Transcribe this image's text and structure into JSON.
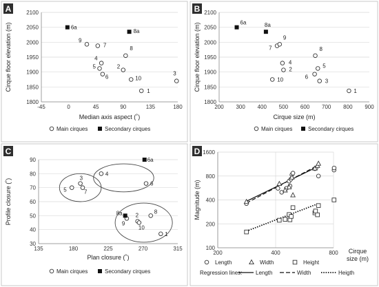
{
  "chart_data": [
    {
      "panel": "A",
      "type": "scatter",
      "xlabel": "Median axis aspect (˚)",
      "ylabel": "Cirque floor elevation (m)",
      "xlim": [
        -45,
        180
      ],
      "ylim": [
        1800,
        2100
      ],
      "xticks": [
        -45,
        0,
        45,
        90,
        135,
        180
      ],
      "yticks": [
        1800,
        1850,
        1900,
        1950,
        2000,
        2050,
        2100
      ],
      "grid": "horizontal",
      "series": [
        {
          "name": "Main cirques",
          "marker": "open-circle",
          "points": [
            {
              "label": "1",
              "x": 120,
              "y": 1837
            },
            {
              "label": "2",
              "x": 90,
              "y": 1907
            },
            {
              "label": "3",
              "x": 178,
              "y": 1870
            },
            {
              "label": "4",
              "x": 54,
              "y": 1930
            },
            {
              "label": "5",
              "x": 51,
              "y": 1912
            },
            {
              "label": "6",
              "x": 56,
              "y": 1893
            },
            {
              "label": "7",
              "x": 48,
              "y": 1988
            },
            {
              "label": "8",
              "x": 94,
              "y": 1955
            },
            {
              "label": "9",
              "x": 30,
              "y": 1993
            },
            {
              "label": "10",
              "x": 103,
              "y": 1875
            }
          ]
        },
        {
          "name": "Secondary cirques",
          "marker": "filled-square",
          "points": [
            {
              "label": "6a",
              "x": -2,
              "y": 2050
            },
            {
              "label": "8a",
              "x": 100,
              "y": 2035
            }
          ]
        }
      ],
      "legend": [
        {
          "label": "Main cirques",
          "marker": "open-circle"
        },
        {
          "label": "Secondary cirques",
          "marker": "filled-square"
        }
      ]
    },
    {
      "panel": "B",
      "type": "scatter",
      "xlabel": "Cirque size (m)",
      "ylabel": "Cirque floor elevation (m)",
      "xlim": [
        200,
        900
      ],
      "ylim": [
        1800,
        2100
      ],
      "xticks": [
        200,
        300,
        400,
        500,
        600,
        700,
        800,
        900
      ],
      "yticks": [
        1800,
        1850,
        1900,
        1950,
        2000,
        2050,
        2100
      ],
      "grid": "horizontal",
      "series": [
        {
          "name": "Main cirques",
          "marker": "open-circle",
          "points": [
            {
              "label": "1",
              "x": 805,
              "y": 1837
            },
            {
              "label": "2",
              "x": 500,
              "y": 1907
            },
            {
              "label": "3",
              "x": 668,
              "y": 1870
            },
            {
              "label": "4",
              "x": 495,
              "y": 1930
            },
            {
              "label": "5",
              "x": 660,
              "y": 1912
            },
            {
              "label": "6",
              "x": 645,
              "y": 1893
            },
            {
              "label": "7",
              "x": 470,
              "y": 1988
            },
            {
              "label": "8",
              "x": 648,
              "y": 1955
            },
            {
              "label": "9",
              "x": 482,
              "y": 1993
            },
            {
              "label": "10",
              "x": 448,
              "y": 1875
            }
          ]
        },
        {
          "name": "Secondary cirques",
          "marker": "filled-square",
          "points": [
            {
              "label": "6a",
              "x": 282,
              "y": 2050
            },
            {
              "label": "8a",
              "x": 418,
              "y": 2035
            }
          ]
        }
      ],
      "legend": [
        {
          "label": "Main cirques",
          "marker": "open-circle"
        },
        {
          "label": "Secondary cirques",
          "marker": "filled-square"
        }
      ]
    },
    {
      "panel": "C",
      "type": "scatter",
      "xlabel": "Plan closure (˚)",
      "ylabel": "Profile closure (˚)",
      "xlim": [
        135,
        315
      ],
      "ylim": [
        30,
        90
      ],
      "xticks": [
        135,
        180,
        225,
        270,
        315
      ],
      "yticks": [
        30,
        40,
        50,
        60,
        70,
        80,
        90
      ],
      "grid": "horizontal",
      "series": [
        {
          "name": "Main cirques",
          "marker": "open-circle",
          "points": [
            {
              "label": "1",
              "x": 293,
              "y": 37
            },
            {
              "label": "2",
              "x": 263,
              "y": 46
            },
            {
              "label": "3",
              "x": 189,
              "y": 73
            },
            {
              "label": "4",
              "x": 216,
              "y": 80
            },
            {
              "label": "5",
              "x": 178,
              "y": 70
            },
            {
              "label": "6",
              "x": 274,
              "y": 73
            },
            {
              "label": "7",
              "x": 192,
              "y": 70
            },
            {
              "label": "8",
              "x": 280,
              "y": 50
            },
            {
              "label": "9",
              "x": 249,
              "y": 48
            },
            {
              "label": "10",
              "x": 265,
              "y": 45
            }
          ]
        },
        {
          "name": "Secondary cirques",
          "marker": "filled-square",
          "points": [
            {
              "label": "6a",
              "x": 272,
              "y": 90
            },
            {
              "label": "8a",
              "x": 247,
              "y": 50
            }
          ]
        }
      ],
      "groups": [
        {
          "cx": 189,
          "cy": 70,
          "rx": 27,
          "ry": 10
        },
        {
          "cx": 245,
          "cy": 77,
          "rx": 39,
          "ry": 10
        },
        {
          "cx": 271,
          "cy": 45,
          "rx": 37,
          "ry": 14
        }
      ],
      "legend": [
        {
          "label": "Main cirques",
          "marker": "open-circle"
        },
        {
          "label": "Secondary cirques",
          "marker": "filled-square"
        }
      ]
    },
    {
      "panel": "D",
      "type": "scatter",
      "xlabel": "Cirque size (m)",
      "ylabel": "Magnitude (m)",
      "xscale": "log",
      "yscale": "log",
      "xlim": [
        200,
        800
      ],
      "ylim": [
        100,
        1600
      ],
      "xticks": [
        200,
        400,
        800
      ],
      "yticks": [
        100,
        200,
        400,
        800,
        1600
      ],
      "grid": "both",
      "series": [
        {
          "name": "Length",
          "marker": "open-circle",
          "points": [
            [
              282,
              360
            ],
            [
              411,
              560
            ],
            [
              430,
              500
            ],
            [
              455,
              560
            ],
            [
              470,
              690
            ],
            [
              475,
              600
            ],
            [
              480,
              730
            ],
            [
              486,
              830
            ],
            [
              492,
              870
            ],
            [
              640,
              990
            ],
            [
              648,
              1010
            ],
            [
              668,
              800
            ],
            [
              805,
              950
            ],
            [
              806,
              1010
            ]
          ]
        },
        {
          "name": "Width",
          "marker": "open-triangle",
          "points": [
            [
              282,
              380
            ],
            [
              418,
              640
            ],
            [
              448,
              530
            ],
            [
              470,
              580
            ],
            [
              486,
              770
            ],
            [
              492,
              460
            ],
            [
              640,
              1000
            ],
            [
              660,
              1080
            ],
            [
              668,
              1150
            ]
          ]
        },
        {
          "name": "Height",
          "marker": "open-square",
          "points": [
            [
              282,
              158
            ],
            [
              418,
              222
            ],
            [
              448,
              228
            ],
            [
              470,
              262
            ],
            [
              475,
              225
            ],
            [
              482,
              248
            ],
            [
              492,
              320
            ],
            [
              640,
              275
            ],
            [
              645,
              290
            ],
            [
              660,
              260
            ],
            [
              668,
              340
            ],
            [
              805,
              400
            ]
          ]
        }
      ],
      "regression": [
        {
          "name": "Length",
          "style": "solid",
          "from": [
            282,
            385
          ],
          "to": [
            668,
            1060
          ]
        },
        {
          "name": "Width",
          "style": "dashed",
          "from": [
            282,
            365
          ],
          "to": [
            668,
            1100
          ]
        },
        {
          "name": "Heigth",
          "style": "dotted",
          "from": [
            282,
            162
          ],
          "to": [
            668,
            360
          ]
        }
      ],
      "legend": [
        {
          "label": "Length",
          "marker": "open-circle"
        },
        {
          "label": "Width",
          "marker": "open-triangle"
        },
        {
          "label": "Height",
          "marker": "open-square"
        }
      ],
      "regression_title": "Regression lines:"
    }
  ]
}
